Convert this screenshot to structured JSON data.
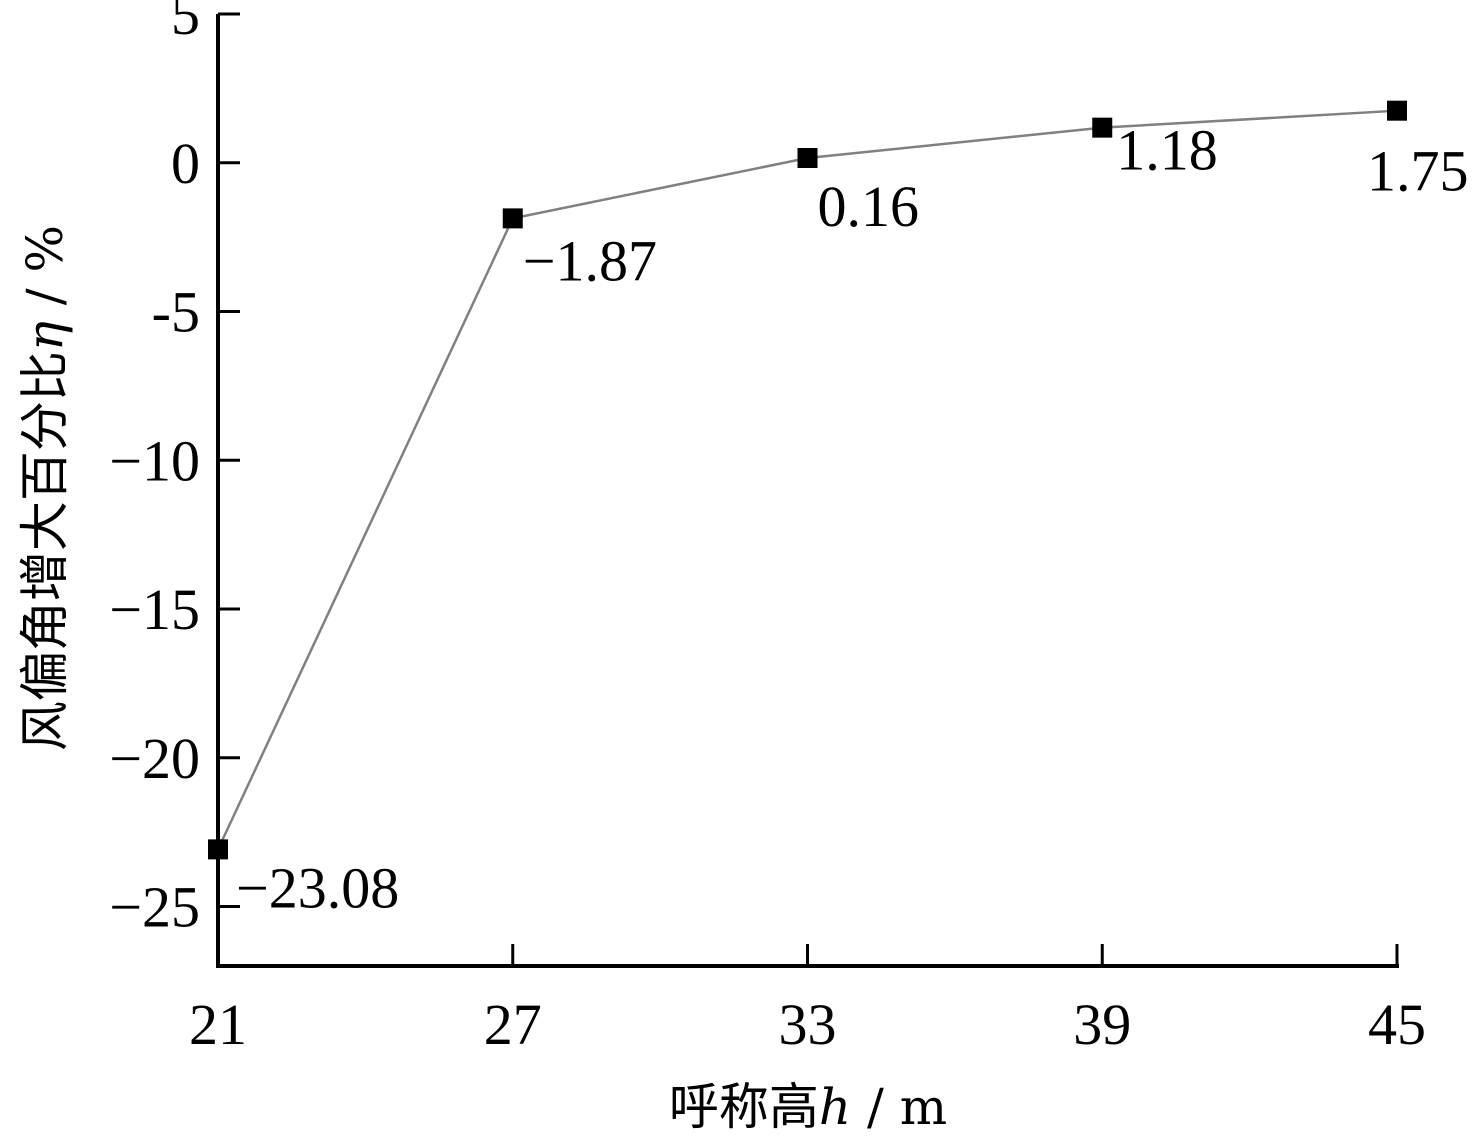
{
  "chart_data": {
    "type": "line",
    "title": "",
    "x": [
      21,
      27,
      33,
      39,
      45
    ],
    "series": [
      {
        "values": [
          -23.08,
          -1.87,
          0.16,
          1.18,
          1.75
        ]
      }
    ],
    "data_labels": [
      "−23.08",
      "−1.87",
      "0.16",
      "1.18",
      "1.75"
    ],
    "xlabel": {
      "text": "呼称高",
      "var": "h",
      "unit": " / m"
    },
    "ylabel": {
      "text": "风偏角增大百分比",
      "var": "η",
      "unit": " / %"
    },
    "xlim": [
      21,
      45
    ],
    "ylim": [
      -27,
      5
    ],
    "x_ticks": [
      21,
      27,
      33,
      39,
      45
    ],
    "x_tick_labels": [
      "21",
      "27",
      "33",
      "39",
      "45"
    ],
    "y_ticks": [
      5,
      0,
      -5,
      -10,
      -15,
      -20,
      -25
    ],
    "y_tick_labels": [
      "5",
      "0",
      "-5",
      "−10",
      "−15",
      "−20",
      "−25"
    ],
    "grid": false,
    "legend": "none",
    "colors": {
      "line": "#808080",
      "marker": "#000000",
      "axis": "#000000"
    }
  }
}
